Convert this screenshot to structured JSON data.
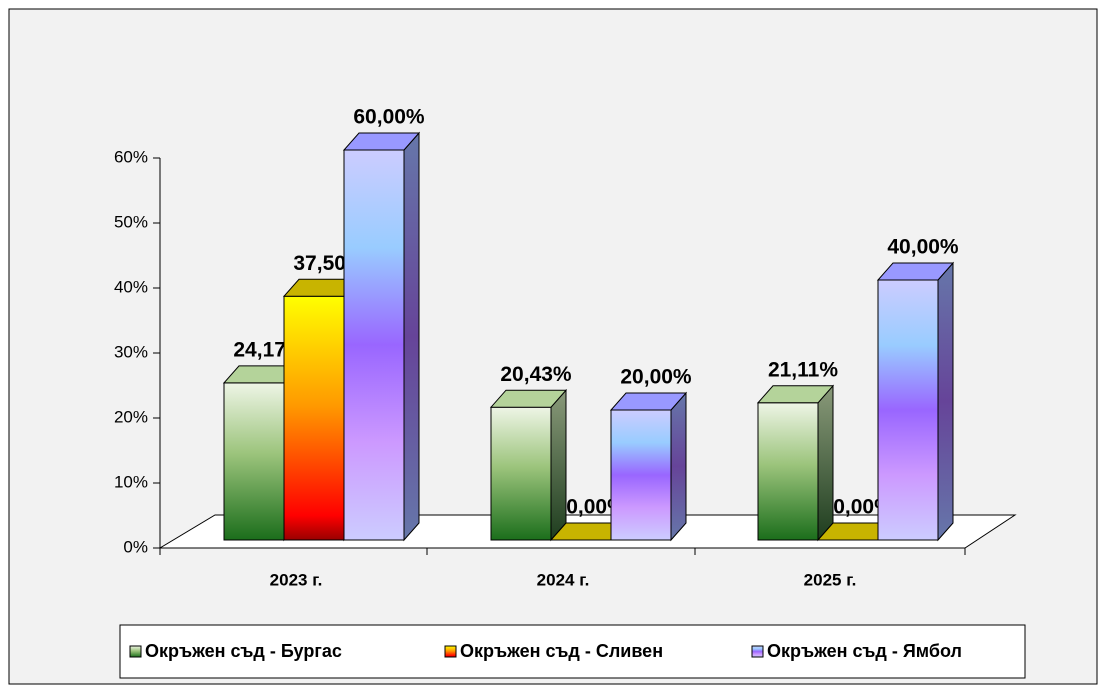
{
  "chart_data": {
    "type": "bar3d",
    "categories": [
      "2023 г.",
      "2024 г.",
      "2025 г."
    ],
    "series": [
      {
        "name": "Окръжен съд - Бургас",
        "color": "#b4d39a",
        "values": [
          24.17,
          20.43,
          21.11
        ],
        "value_labels": [
          "24,17%",
          "20,43%",
          "21,11%"
        ]
      },
      {
        "name": "Окръжен съд - Сливен",
        "color": "#c8b400",
        "values": [
          37.5,
          0,
          0
        ],
        "value_labels": [
          "37,50%",
          "0,00%",
          "0,00%"
        ]
      },
      {
        "name": "Окръжен съд - Ямбол",
        "color": "#9999ff",
        "values": [
          60,
          20,
          40
        ],
        "value_labels": [
          "60,00%",
          "20,00%",
          "40,00%"
        ]
      }
    ],
    "ylim": [
      0,
      60
    ],
    "yticks": [
      {
        "value": 0,
        "label": "0%"
      },
      {
        "value": 10,
        "label": "10%"
      },
      {
        "value": 20,
        "label": "20%"
      },
      {
        "value": 30,
        "label": "30%"
      },
      {
        "value": 40,
        "label": "40%"
      },
      {
        "value": 50,
        "label": "50%"
      },
      {
        "value": 60,
        "label": "60%"
      }
    ],
    "legend": "bottom"
  }
}
